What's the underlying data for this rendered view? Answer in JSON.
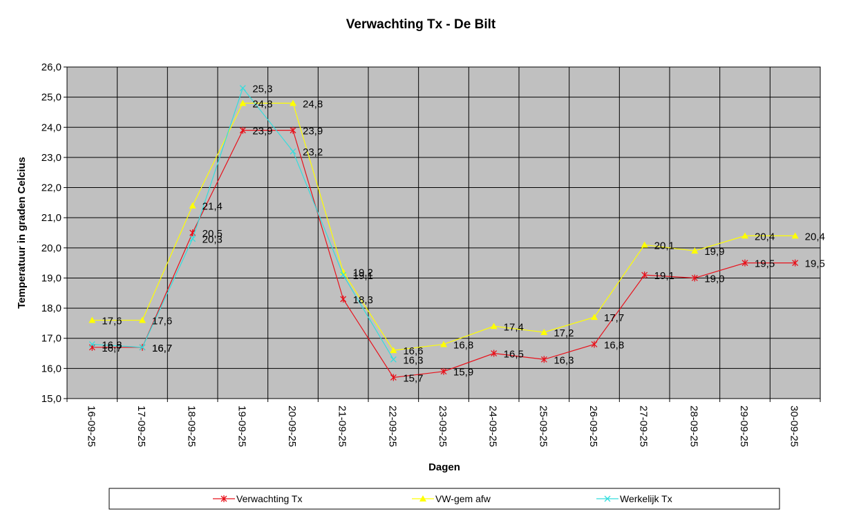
{
  "chart_data": {
    "type": "line",
    "title": "Verwachting Tx - De Bilt",
    "xlabel": "Dagen",
    "ylabel": "Temperatuur in graden Celcius",
    "ylim": [
      15.0,
      26.0
    ],
    "ytick_step": 1.0,
    "grid": true,
    "legend_position": "bottom",
    "plot_background": "#c0c0c0",
    "categories": [
      "16-09-25",
      "17-09-25",
      "18-09-25",
      "19-09-25",
      "20-09-25",
      "21-09-25",
      "22-09-25",
      "23-09-25",
      "24-09-25",
      "25-09-25",
      "26-09-25",
      "27-09-25",
      "28-09-25",
      "29-09-25",
      "30-09-25"
    ],
    "series": [
      {
        "name": "Verwachting Tx",
        "color": "#e8101a",
        "marker": "star",
        "values": [
          16.7,
          16.7,
          20.5,
          23.9,
          23.9,
          18.3,
          15.7,
          15.9,
          16.5,
          16.3,
          16.8,
          19.1,
          19.0,
          19.5,
          19.5
        ],
        "labels": [
          "16,7",
          "16,7",
          "20,5",
          "23,9",
          "23,9",
          "18,3",
          "15,7",
          "15,9",
          "16,5",
          "16,3",
          "16,8",
          "19,1",
          "19,0",
          "19,5",
          "19,5"
        ]
      },
      {
        "name": "VW-gem afw",
        "color": "#ffff00",
        "marker": "triangle",
        "values": [
          17.6,
          17.6,
          21.4,
          24.8,
          24.8,
          19.2,
          16.6,
          16.8,
          17.4,
          17.2,
          17.7,
          20.1,
          19.9,
          20.4,
          20.4
        ],
        "labels": [
          "17,6",
          "17,6",
          "21,4",
          "24,8",
          "24,8",
          "19,2",
          "16,6",
          "16,8",
          "17,4",
          "17,2",
          "17,7",
          "20,1",
          "19,9",
          "20,4",
          "20,4"
        ]
      },
      {
        "name": "Werkelijk Tx",
        "color": "#33dddd",
        "marker": "x",
        "values": [
          16.8,
          16.7,
          20.3,
          25.3,
          23.2,
          19.1,
          16.3,
          null,
          null,
          null,
          null,
          null,
          null,
          null,
          null
        ],
        "labels": [
          "16,8",
          "16,7",
          "20,3",
          "25,3",
          "23,2",
          "19,1",
          "16,3",
          "",
          "",
          "",
          "",
          "",
          "",
          "",
          ""
        ]
      }
    ]
  }
}
